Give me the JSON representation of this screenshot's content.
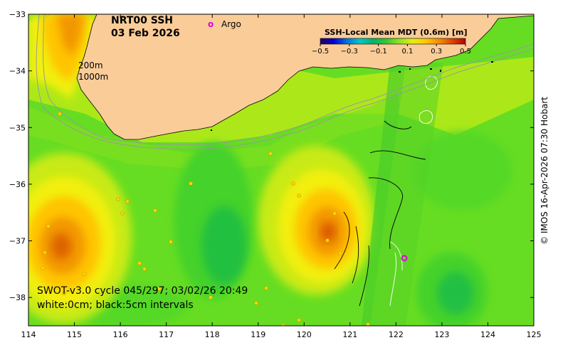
{
  "map": {
    "title_line1": "NRT00 SSH",
    "title_line2": "03 Feb 2026",
    "argo_symbol": "o",
    "argo_label": "Argo",
    "bathy_label_1": "200m",
    "bathy_label_2": "1000m",
    "swot_line1": "SWOT-v3.0 cycle 045/297; 03/02/26 20:49",
    "swot_line2": "white:0cm; black:5cm intervals",
    "credit": "© IMOS 16-Apr-2026 07:30 Hobart",
    "colorbar": {
      "title": "SSH-Local Mean MDT (0.6m) [m]",
      "tick_labels": [
        "−0.5",
        "−0.3",
        "−0.1",
        "0.1",
        "0.3",
        "0.5"
      ],
      "range": [
        -0.5,
        0.5
      ],
      "colors": [
        "#23005a",
        "#0000d2",
        "#0070e6",
        "#00c8c8",
        "#00b46e",
        "#34c832",
        "#8ce61e",
        "#e6ee14",
        "#ffc800",
        "#f58c00",
        "#dc4600",
        "#b40000"
      ]
    },
    "x_axis": {
      "ticks": [
        "114",
        "115",
        "116",
        "117",
        "118",
        "119",
        "120",
        "121",
        "122",
        "123",
        "124",
        "125"
      ],
      "range": [
        114,
        125
      ]
    },
    "y_axis": {
      "ticks": [
        "−33",
        "−34",
        "−35",
        "−36",
        "−37",
        "−38"
      ],
      "range": [
        -38.5,
        -33
      ]
    },
    "colors": {
      "land": "#facc98",
      "background_green": "#66dd22",
      "argo_marker": "#e000e0"
    },
    "features": {
      "warm_eddies": [
        {
          "lon": 120.6,
          "lat": -36.9,
          "peak_ssh_m": 0.3
        },
        {
          "lon": 114.8,
          "lat": -37.1,
          "peak_ssh_m": 0.27
        }
      ],
      "cold_eddies": [
        {
          "lon": 118.3,
          "lat": -36.8,
          "ssh_m": -0.02
        },
        {
          "lon": 123.6,
          "lat": -38.1,
          "ssh_m": -0.02
        }
      ],
      "argo_floats": [
        {
          "lon": 122.2,
          "lat": -37.3
        }
      ]
    }
  }
}
